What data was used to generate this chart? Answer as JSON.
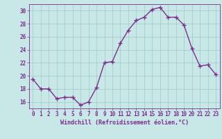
{
  "x": [
    0,
    1,
    2,
    3,
    4,
    5,
    6,
    7,
    8,
    9,
    10,
    11,
    12,
    13,
    14,
    15,
    16,
    17,
    18,
    19,
    20,
    21,
    22,
    23
  ],
  "y": [
    19.5,
    18.0,
    18.0,
    16.5,
    16.7,
    16.7,
    15.5,
    16.0,
    18.2,
    22.0,
    22.2,
    25.0,
    27.0,
    28.5,
    29.0,
    30.2,
    30.5,
    29.0,
    29.0,
    27.8,
    24.2,
    21.5,
    21.7,
    20.2
  ],
  "line_color": "#7B2D8B",
  "marker": "+",
  "marker_size": 4,
  "marker_lw": 1.0,
  "bg_color": "#C8E8E8",
  "grid_color": "#A0C8C8",
  "tick_label_color": "#7B2D8B",
  "xlabel": "Windchill (Refroidissement éolien,°C)",
  "xlabel_color": "#7B2D8B",
  "ylim": [
    15.0,
    31.0
  ],
  "yticks": [
    16,
    18,
    20,
    22,
    24,
    26,
    28,
    30
  ],
  "xticks": [
    0,
    1,
    2,
    3,
    4,
    5,
    6,
    7,
    8,
    9,
    10,
    11,
    12,
    13,
    14,
    15,
    16,
    17,
    18,
    19,
    20,
    21,
    22,
    23
  ],
  "tick_fontsize": 5.5,
  "xlabel_fontsize": 6.0,
  "line_width": 1.0
}
